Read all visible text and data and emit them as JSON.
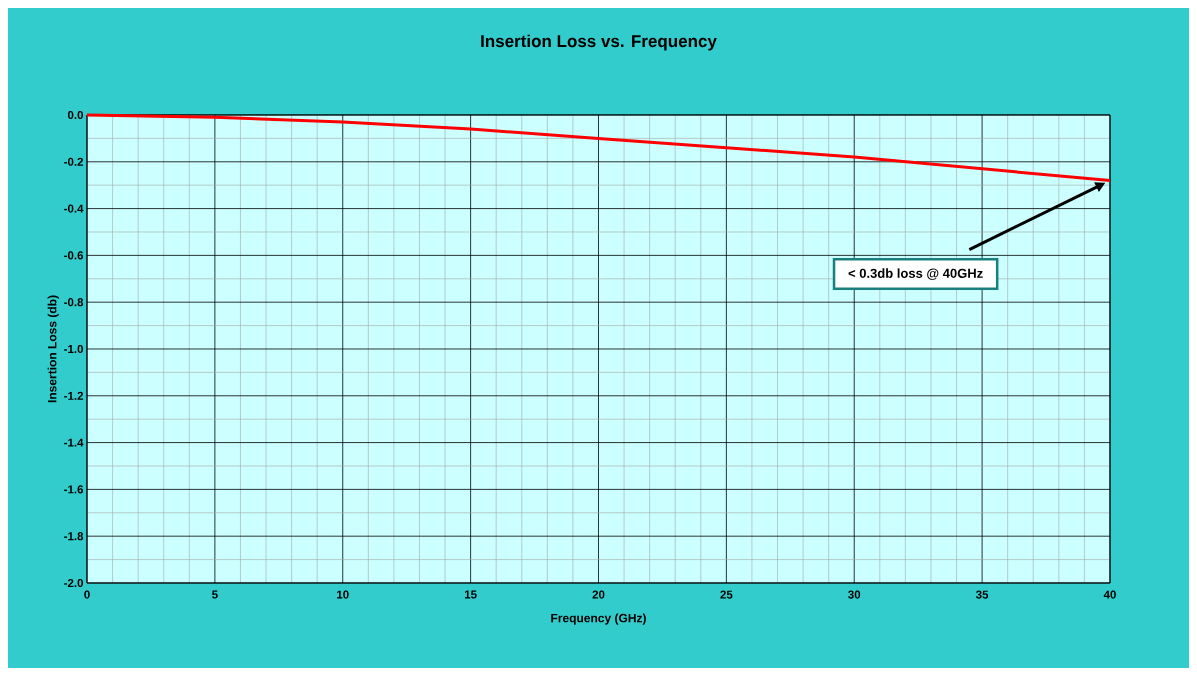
{
  "chart_data": {
    "type": "line",
    "title": "Insertion Loss vs. Frequency",
    "xlabel": "Frequency (GHz)",
    "ylabel": "Insertion Loss (db)",
    "x": [
      0,
      5,
      10,
      15,
      20,
      25,
      30,
      35,
      40
    ],
    "series": [
      {
        "color": "#ff0000",
        "values": [
          0,
          -0.01,
          -0.03,
          -0.06,
          -0.1,
          -0.14,
          -0.18,
          -0.23,
          -0.28
        ]
      }
    ],
    "xlim": [
      0,
      40
    ],
    "xticks": [
      0,
      5,
      10,
      15,
      20,
      25,
      30,
      35,
      40
    ],
    "ylim": [
      -2,
      0
    ],
    "yticks": [
      {
        "value": 0,
        "label": "0.0"
      },
      -0.2,
      -0.4,
      -0.6,
      -0.8,
      {
        "value": -1,
        "label": "-1.0"
      },
      -1.2,
      -1.4,
      -1.6,
      -1.8,
      {
        "value": -2,
        "label": "-2.0"
      }
    ],
    "grid": true,
    "marker": "none",
    "line_style": "solid",
    "annotations": [
      "< 0.3db loss @ 40GHz"
    ]
  }
}
